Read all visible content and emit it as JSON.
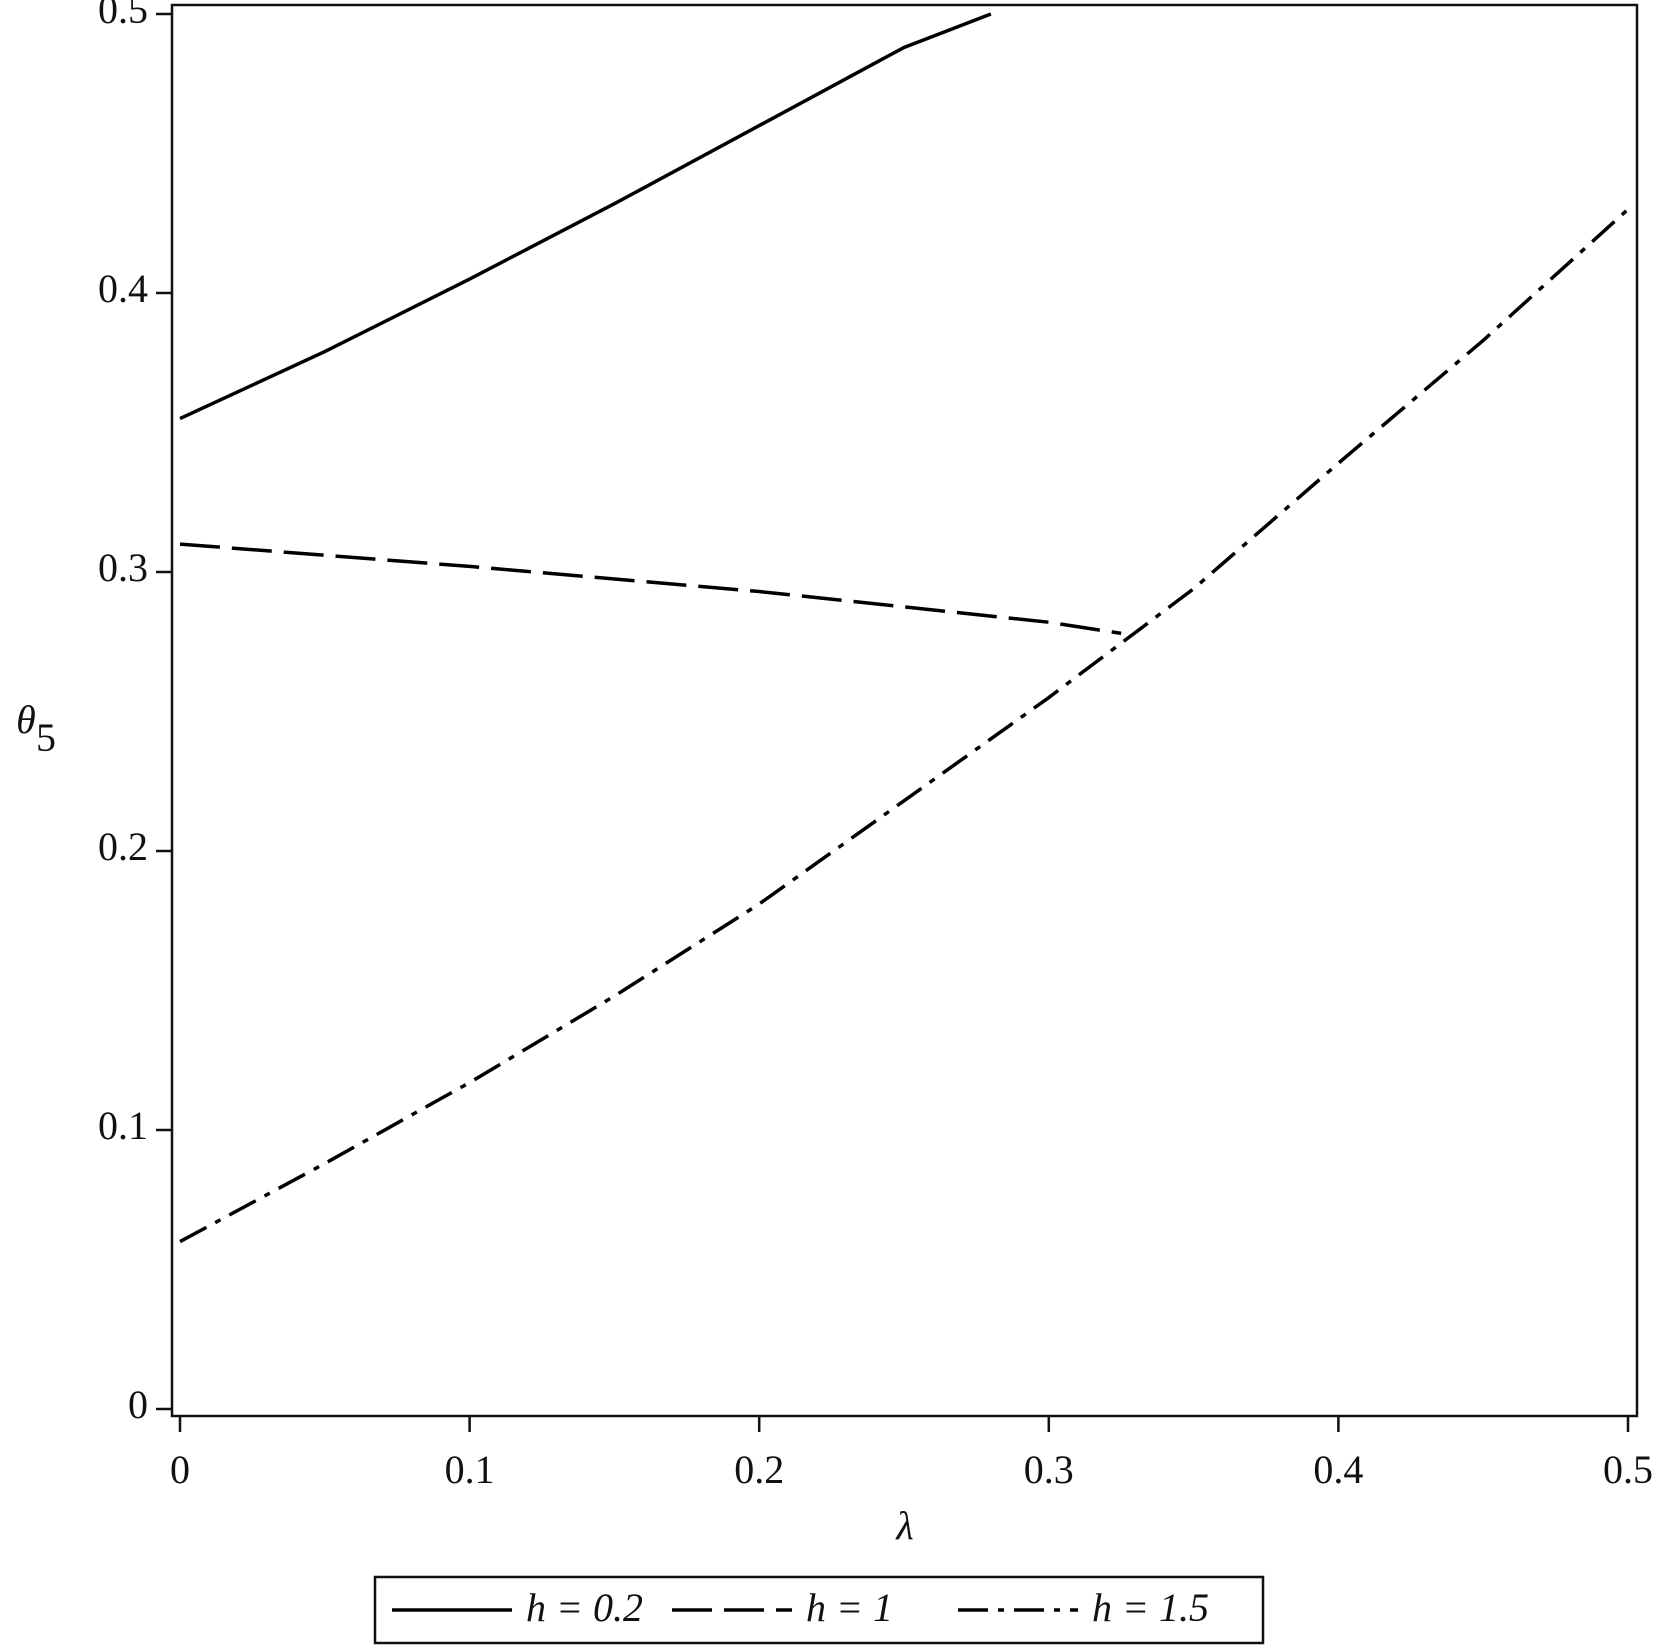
{
  "chart_data": {
    "type": "line",
    "x_label": "λ",
    "y_label": "θ",
    "y_label_subscript": "5",
    "xlim": [
      0,
      0.5
    ],
    "ylim": [
      0,
      0.5
    ],
    "xticks": [
      0,
      0.1,
      0.2,
      0.3,
      0.4,
      0.5
    ],
    "yticks": [
      0,
      0.1,
      0.2,
      0.3,
      0.4,
      0.5
    ],
    "legend": "bottom",
    "series": [
      {
        "name": "h = 0.2",
        "color": "#000000",
        "dash": "solid",
        "x": [
          0,
          0.05,
          0.1,
          0.15,
          0.2,
          0.25,
          0.28
        ],
        "values": [
          0.355,
          0.379,
          0.405,
          0.432,
          0.46,
          0.488,
          0.5
        ]
      },
      {
        "name": "h = 1",
        "color": "#000000",
        "dash": "dashed",
        "x": [
          0,
          0.1,
          0.2,
          0.3,
          0.325
        ],
        "values": [
          0.31,
          0.302,
          0.293,
          0.282,
          0.278
        ]
      },
      {
        "name": "h = 1.5",
        "color": "#000000",
        "dash": "dashdot",
        "x": [
          0,
          0.05,
          0.1,
          0.15,
          0.2,
          0.25,
          0.3,
          0.35,
          0.4,
          0.45,
          0.5
        ],
        "values": [
          0.06,
          0.088,
          0.117,
          0.148,
          0.181,
          0.218,
          0.255,
          0.294,
          0.339,
          0.383,
          0.43
        ]
      }
    ]
  }
}
